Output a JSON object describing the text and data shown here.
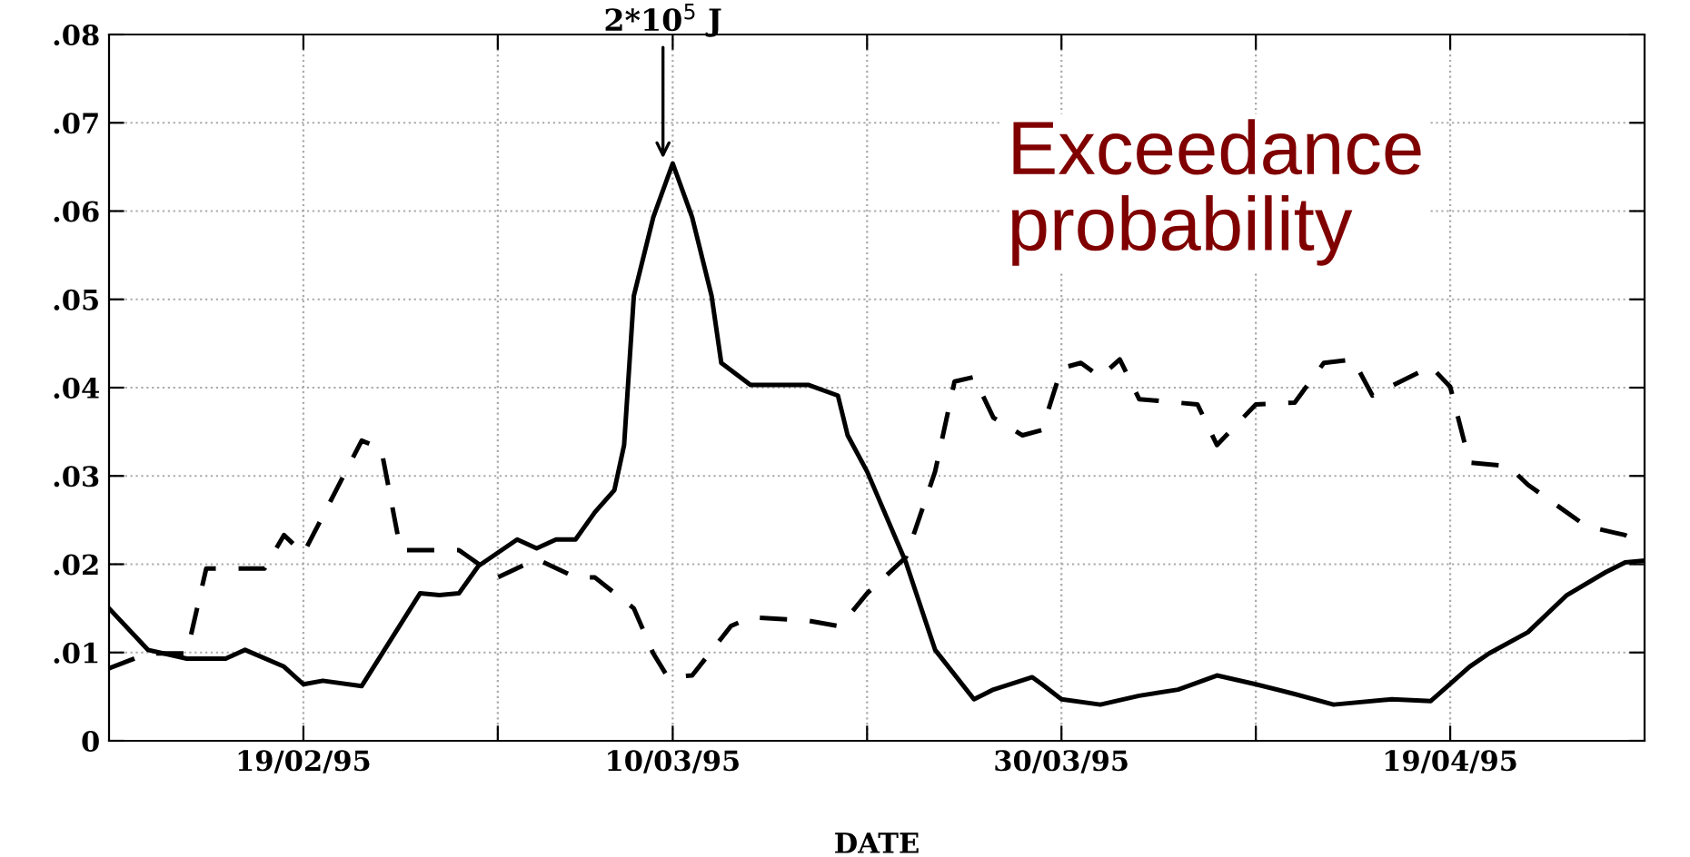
{
  "chart_data": {
    "type": "line",
    "xlabel": "DATE",
    "xlim": [
      "1995-02-09",
      "1995-04-29"
    ],
    "xticks": [
      {
        "value": "1995-02-19",
        "label": "19/02/95"
      },
      {
        "value": "1995-03-01",
        "label": null
      },
      {
        "value": "1995-03-10",
        "label": "10/03/95"
      },
      {
        "value": "1995-03-20",
        "label": null
      },
      {
        "value": "1995-03-30",
        "label": "30/03/95"
      },
      {
        "value": "1995-04-09",
        "label": null
      },
      {
        "value": "1995-04-19",
        "label": "19/04/95"
      }
    ],
    "ylim": [
      0,
      0.08
    ],
    "yticks": [
      {
        "value": 0,
        "label": "0"
      },
      {
        "value": 0.01,
        "label": ".01"
      },
      {
        "value": 0.02,
        "label": ".02"
      },
      {
        "value": 0.03,
        "label": ".03"
      },
      {
        "value": 0.04,
        "label": ".04"
      },
      {
        "value": 0.05,
        "label": ".05"
      },
      {
        "value": 0.06,
        "label": ".06"
      },
      {
        "value": 0.07,
        "label": ".07"
      },
      {
        "value": 0.08,
        "label": ".08"
      }
    ],
    "grid": true,
    "marker": "none",
    "series": [
      {
        "color": "#000000",
        "line_style": "solid",
        "x": [
          "1995-02-09",
          "1995-02-11",
          "1995-02-13",
          "1995-02-15",
          "1995-02-16",
          "1995-02-18",
          "1995-02-19",
          "1995-02-20",
          "1995-02-22",
          "1995-02-25",
          "1995-02-26",
          "1995-02-27",
          "1995-02-28",
          "1995-03-02",
          "1995-03-03",
          "1995-03-04",
          "1995-03-05",
          "1995-03-06",
          "1995-03-07",
          "1995-03-07T12:00",
          "1995-03-08",
          "1995-03-09",
          "1995-03-10",
          "1995-03-11",
          "1995-03-12",
          "1995-03-12T12:00",
          "1995-03-14",
          "1995-03-17",
          "1995-03-18T12:00",
          "1995-03-19",
          "1995-03-20",
          "1995-03-22",
          "1995-03-23T12:00",
          "1995-03-25T12:00",
          "1995-03-26T12:00",
          "1995-03-28T12:00",
          "1995-03-29",
          "1995-03-30",
          "1995-04-01",
          "1995-04-03",
          "1995-04-05",
          "1995-04-07",
          "1995-04-09",
          "1995-04-11",
          "1995-04-13",
          "1995-04-16",
          "1995-04-18",
          "1995-04-20",
          "1995-04-21",
          "1995-04-23",
          "1995-04-25",
          "1995-04-27",
          "1995-04-28",
          "1995-04-29"
        ],
        "values": [
          0.015,
          0.0103,
          0.0093,
          0.0093,
          0.0103,
          0.0084,
          0.0064,
          0.0068,
          0.0062,
          0.0167,
          0.0165,
          0.0167,
          0.0198,
          0.0228,
          0.0218,
          0.0228,
          0.0228,
          0.0259,
          0.0284,
          0.0335,
          0.0504,
          0.0593,
          0.0654,
          0.0593,
          0.0504,
          0.0428,
          0.0403,
          0.0403,
          0.0391,
          0.0346,
          0.0305,
          0.0202,
          0.0103,
          0.0047,
          0.0058,
          0.0072,
          0.0064,
          0.0047,
          0.0041,
          0.0051,
          0.0058,
          0.0074,
          0.0064,
          0.0053,
          0.0041,
          0.0047,
          0.0045,
          0.0084,
          0.0099,
          0.0123,
          0.0165,
          0.0191,
          0.0202,
          0.0204
        ]
      },
      {
        "color": "#000000",
        "line_style": "dashed",
        "x": [
          "1995-02-09",
          "1995-02-11",
          "1995-02-13",
          "1995-02-14",
          "1995-02-16",
          "1995-02-17",
          "1995-02-18",
          "1995-02-19",
          "1995-02-22",
          "1995-02-23",
          "1995-02-24",
          "1995-02-27",
          "1995-03-01",
          "1995-03-03",
          "1995-03-05",
          "1995-03-06",
          "1995-03-08",
          "1995-03-09",
          "1995-03-09T18:00",
          "1995-03-11",
          "1995-03-13",
          "1995-03-14",
          "1995-03-17",
          "1995-03-18T12:00",
          "1995-03-19",
          "1995-03-20",
          "1995-03-22",
          "1995-03-23T12:00",
          "1995-03-24T12:00",
          "1995-03-25T12:00",
          "1995-03-26T12:00",
          "1995-03-28",
          "1995-03-29",
          "1995-03-30",
          "1995-03-31",
          "1995-04-01",
          "1995-04-02",
          "1995-04-03",
          "1995-04-06",
          "1995-04-07",
          "1995-04-09",
          "1995-04-11",
          "1995-04-12T12:00",
          "1995-04-14",
          "1995-04-15",
          "1995-04-18",
          "1995-04-19",
          "1995-04-20",
          "1995-04-22",
          "1995-04-23",
          "1995-04-26",
          "1995-04-28",
          "1995-04-29"
        ],
        "values": [
          0.0082,
          0.0099,
          0.0099,
          0.0195,
          0.0195,
          0.0195,
          0.0233,
          0.0212,
          0.034,
          0.0331,
          0.0216,
          0.0216,
          0.0185,
          0.0206,
          0.0185,
          0.0185,
          0.015,
          0.0099,
          0.0072,
          0.0074,
          0.013,
          0.014,
          0.0136,
          0.013,
          0.014,
          0.0167,
          0.0208,
          0.0305,
          0.0407,
          0.0412,
          0.0366,
          0.0346,
          0.0352,
          0.0422,
          0.0428,
          0.0412,
          0.0432,
          0.0387,
          0.0381,
          0.0335,
          0.0381,
          0.0383,
          0.0428,
          0.0432,
          0.0391,
          0.0424,
          0.0401,
          0.0315,
          0.0311,
          0.029,
          0.0243,
          0.0233,
          0.0222
        ]
      }
    ],
    "annotations": [
      {
        "text": "2*10$^{5}$ J",
        "x": "1995-03-09T12:00",
        "y": 0.0654
      },
      "Exceedance probability"
    ]
  }
}
